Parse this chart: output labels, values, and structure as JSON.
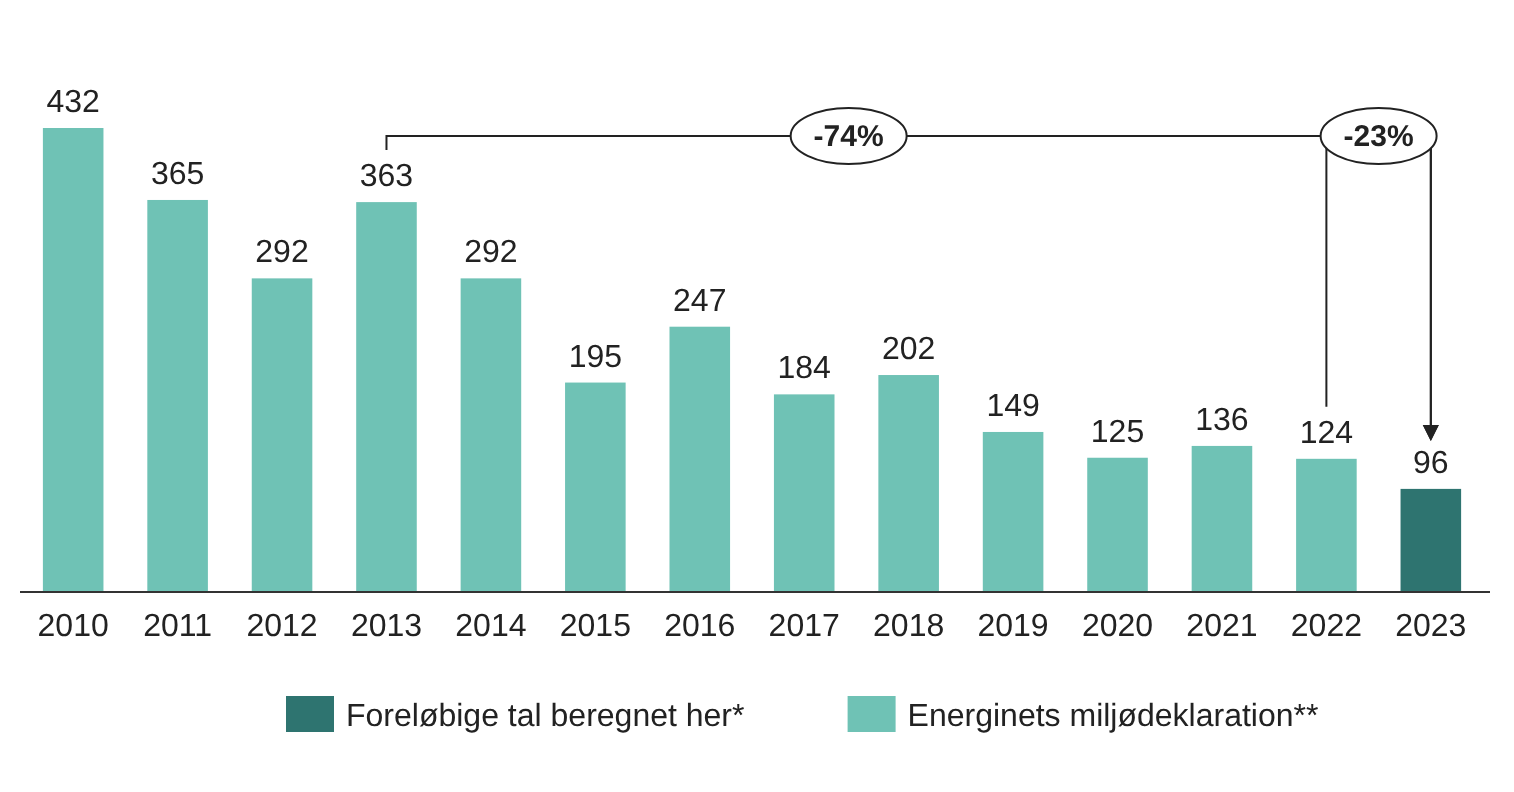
{
  "chart_data": {
    "type": "bar",
    "data_labels": true,
    "legend": "bottom",
    "categories": [
      "2010",
      "2011",
      "2012",
      "2013",
      "2014",
      "2015",
      "2016",
      "2017",
      "2018",
      "2019",
      "2020",
      "2021",
      "2022",
      "2023"
    ],
    "series": [
      {
        "name": "Foreløbige tal beregnet her*",
        "color": "#2e7470",
        "values": [
          null,
          null,
          null,
          null,
          null,
          null,
          null,
          null,
          null,
          null,
          null,
          null,
          null,
          96
        ]
      },
      {
        "name": "Energinets miljødeklaration**",
        "color": "#6fc2b5",
        "values": [
          432,
          365,
          292,
          363,
          292,
          195,
          247,
          184,
          202,
          149,
          125,
          136,
          124,
          null
        ]
      }
    ],
    "annotations": [
      "-74%",
      "-23%"
    ]
  }
}
